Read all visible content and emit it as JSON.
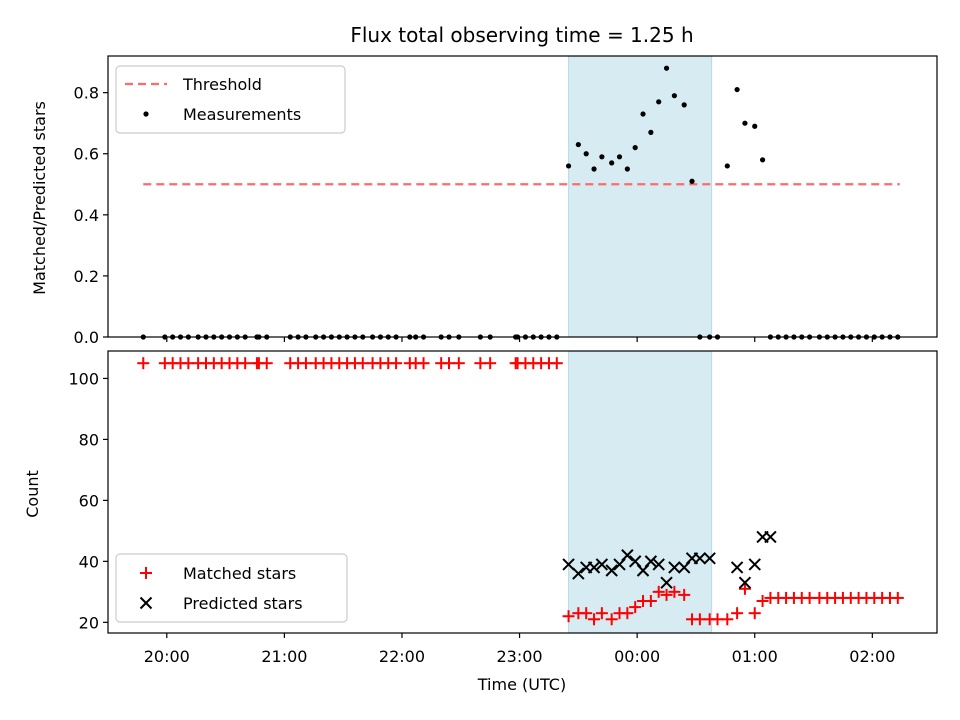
{
  "chart_data": {
    "type": "scatter",
    "title": "Flux total observing time = 1.25 h",
    "xlabel": "Time (UTC)",
    "x_ticks": [
      "20:00",
      "21:00",
      "22:00",
      "23:00",
      "00:00",
      "01:00",
      "02:00"
    ],
    "x_range": [
      "19:30",
      "02:33"
    ],
    "shaded_interval": {
      "start": "23:25",
      "end": "00:38",
      "color": "#add8e6"
    },
    "top": {
      "ylabel": "Matched/Predicted stars",
      "ylim": [
        0,
        0.92
      ],
      "y_ticks": [
        "0.0",
        "0.2",
        "0.4",
        "0.6",
        "0.8"
      ],
      "legend": {
        "position": "top-left",
        "threshold_label": "Threshold",
        "measurements_label": "Measurements"
      },
      "threshold": {
        "value": 0.5,
        "x_start": "19:48",
        "x_end": "02:14",
        "color": "#ff6b6b"
      },
      "measurements": {
        "color": "#000000",
        "x": [
          "19:48",
          "19:59",
          "20:03",
          "20:07",
          "20:11",
          "20:16",
          "20:20",
          "20:24",
          "20:28",
          "20:32",
          "20:36",
          "20:40",
          "20:46",
          "20:47",
          "20:51",
          "21:03",
          "21:07",
          "21:11",
          "21:16",
          "21:20",
          "21:24",
          "21:28",
          "21:32",
          "21:36",
          "21:40",
          "21:45",
          "21:49",
          "21:53",
          "21:57",
          "22:04",
          "22:07",
          "22:11",
          "22:20",
          "22:24",
          "22:29",
          "22:40",
          "22:45",
          "22:58",
          "22:59",
          "23:03",
          "23:07",
          "23:11",
          "23:15",
          "23:19",
          "23:25",
          "23:30",
          "23:34",
          "23:38",
          "23:42",
          "23:47",
          "23:51",
          "23:55",
          "23:59",
          "00:03",
          "00:07",
          "00:11",
          "00:15",
          "00:19",
          "00:24",
          "00:28",
          "00:32",
          "00:37",
          "00:41",
          "00:46",
          "00:51",
          "00:55",
          "01:00",
          "01:04",
          "01:08",
          "01:12",
          "01:16",
          "01:20",
          "01:24",
          "01:28",
          "01:33",
          "01:37",
          "01:41",
          "01:45",
          "01:49",
          "01:53",
          "01:57",
          "02:01",
          "02:05",
          "02:09",
          "02:13"
        ],
        "y": [
          0,
          0,
          0,
          0,
          0,
          0,
          0,
          0,
          0,
          0,
          0,
          0,
          0,
          0,
          0,
          0,
          0,
          0,
          0,
          0,
          0,
          0,
          0,
          0,
          0,
          0,
          0,
          0,
          0,
          0,
          0,
          0,
          0,
          0,
          0,
          0,
          0,
          0,
          0,
          0,
          0,
          0,
          0,
          0,
          0.56,
          0.63,
          0.6,
          0.55,
          0.59,
          0.57,
          0.59,
          0.55,
          0.62,
          0.73,
          0.67,
          0.77,
          0.88,
          0.79,
          0.76,
          0.51,
          0,
          0,
          0,
          0.56,
          0.81,
          0.7,
          0.69,
          0.58,
          0,
          0,
          0,
          0,
          0,
          0,
          0,
          0,
          0,
          0,
          0,
          0,
          0,
          0,
          0,
          0,
          0
        ]
      }
    },
    "bottom": {
      "ylabel": "Count",
      "ylim": [
        16.5,
        109
      ],
      "y_ticks": [
        "20",
        "40",
        "60",
        "80",
        "100"
      ],
      "legend": {
        "position": "bottom-left",
        "matched_label": "Matched stars",
        "predicted_label": "Predicted stars"
      },
      "matched": {
        "color": "#ff0000",
        "x": [
          "19:48",
          "19:59",
          "20:03",
          "20:07",
          "20:11",
          "20:16",
          "20:20",
          "20:24",
          "20:28",
          "20:32",
          "20:36",
          "20:40",
          "20:46",
          "20:47",
          "20:51",
          "21:03",
          "21:07",
          "21:11",
          "21:16",
          "21:20",
          "21:24",
          "21:28",
          "21:32",
          "21:36",
          "21:40",
          "21:45",
          "21:49",
          "21:53",
          "21:57",
          "22:04",
          "22:07",
          "22:11",
          "22:20",
          "22:24",
          "22:29",
          "22:40",
          "22:45",
          "22:58",
          "22:59",
          "23:03",
          "23:07",
          "23:11",
          "23:15",
          "23:19",
          "23:25",
          "23:30",
          "23:34",
          "23:38",
          "23:42",
          "23:47",
          "23:51",
          "23:55",
          "23:59",
          "00:03",
          "00:07",
          "00:11",
          "00:15",
          "00:19",
          "00:24",
          "00:28",
          "00:32",
          "00:37",
          "00:41",
          "00:46",
          "00:51",
          "00:55",
          "01:00",
          "01:04",
          "01:08",
          "01:12",
          "01:16",
          "01:20",
          "01:24",
          "01:28",
          "01:33",
          "01:37",
          "01:41",
          "01:45",
          "01:49",
          "01:53",
          "01:57",
          "02:01",
          "02:05",
          "02:09",
          "02:13"
        ],
        "y": [
          105,
          105,
          105,
          105,
          105,
          105,
          105,
          105,
          105,
          105,
          105,
          105,
          105,
          105,
          105,
          105,
          105,
          105,
          105,
          105,
          105,
          105,
          105,
          105,
          105,
          105,
          105,
          105,
          105,
          105,
          105,
          105,
          105,
          105,
          105,
          105,
          105,
          105,
          105,
          105,
          105,
          105,
          105,
          105,
          22,
          23,
          23,
          21,
          23,
          21,
          23,
          23,
          25,
          27,
          27,
          30,
          29,
          30,
          29,
          21,
          21,
          21,
          21,
          21,
          23,
          31,
          23,
          27,
          28,
          28,
          28,
          28,
          28,
          28,
          28,
          28,
          28,
          28,
          28,
          28,
          28,
          28,
          28,
          28,
          28
        ]
      },
      "predicted": {
        "color": "#000000",
        "x": [
          "23:25",
          "23:30",
          "23:34",
          "23:38",
          "23:42",
          "23:47",
          "23:51",
          "23:55",
          "23:59",
          "00:03",
          "00:07",
          "00:11",
          "00:15",
          "00:19",
          "00:24",
          "00:28",
          "00:32",
          "00:37",
          "00:51",
          "00:55",
          "01:00",
          "01:04",
          "01:08"
        ],
        "y": [
          39,
          36,
          38,
          38,
          39,
          37,
          39,
          42,
          40,
          37,
          40,
          39,
          33,
          38,
          38,
          41,
          41,
          41,
          38,
          33,
          39,
          48,
          48
        ]
      }
    }
  }
}
